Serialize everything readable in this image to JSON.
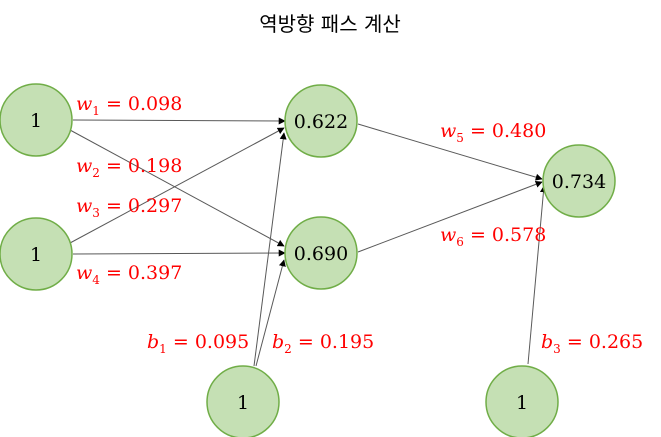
{
  "title": "역방향 패스 계산",
  "colors": {
    "node_fill": "#c5e0b4",
    "node_stroke": "#70ad47",
    "edge": "#595959",
    "label": "#ff0000"
  },
  "nodes": {
    "in1": "1",
    "in2": "1",
    "h1": "0.622",
    "h2": "0.690",
    "out": "0.734",
    "bias_hidden": "1",
    "bias_out": "1"
  },
  "weights": {
    "w1": {
      "var": "w",
      "sub": "1",
      "value": "0.098"
    },
    "w2": {
      "var": "w",
      "sub": "2",
      "value": "0.198"
    },
    "w3": {
      "var": "w",
      "sub": "3",
      "value": "0.297"
    },
    "w4": {
      "var": "w",
      "sub": "4",
      "value": "0.397"
    },
    "w5": {
      "var": "w",
      "sub": "5",
      "value": "0.480"
    },
    "w6": {
      "var": "w",
      "sub": "6",
      "value": "0.578"
    },
    "b1": {
      "var": "b",
      "sub": "1",
      "value": "0.095"
    },
    "b2": {
      "var": "b",
      "sub": "2",
      "value": "0.195"
    },
    "b3": {
      "var": "b",
      "sub": "3",
      "value": "0.265"
    }
  }
}
